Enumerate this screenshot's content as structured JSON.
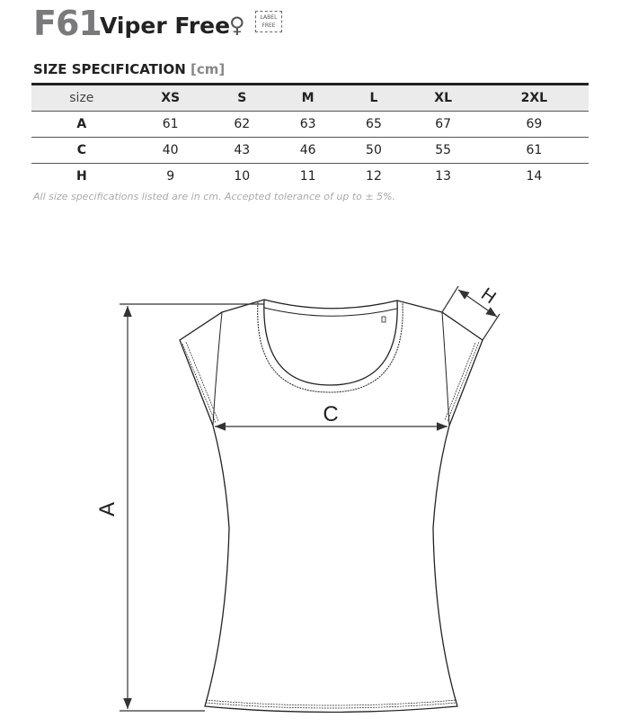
{
  "product": {
    "code": "F61",
    "name": "Viper Free",
    "gender_icon": "female-symbol-icon",
    "label_badge": [
      "LABEL",
      "FREE"
    ]
  },
  "spec": {
    "title": "SIZE SPECIFICATION",
    "unit": "[cm]",
    "headers": [
      "size",
      "XS",
      "S",
      "M",
      "L",
      "XL",
      "2XL"
    ],
    "rows": [
      {
        "label": "A",
        "values": [
          "61",
          "62",
          "63",
          "65",
          "67",
          "69"
        ]
      },
      {
        "label": "C",
        "values": [
          "40",
          "43",
          "46",
          "50",
          "55",
          "61"
        ]
      },
      {
        "label": "H",
        "values": [
          "9",
          "10",
          "11",
          "12",
          "13",
          "14"
        ]
      }
    ],
    "note": "All size specifications listed are in cm. Accepted tolerance of up to ± 5%."
  },
  "diagram": {
    "label_a": "A",
    "label_c": "C",
    "label_h": "H"
  }
}
